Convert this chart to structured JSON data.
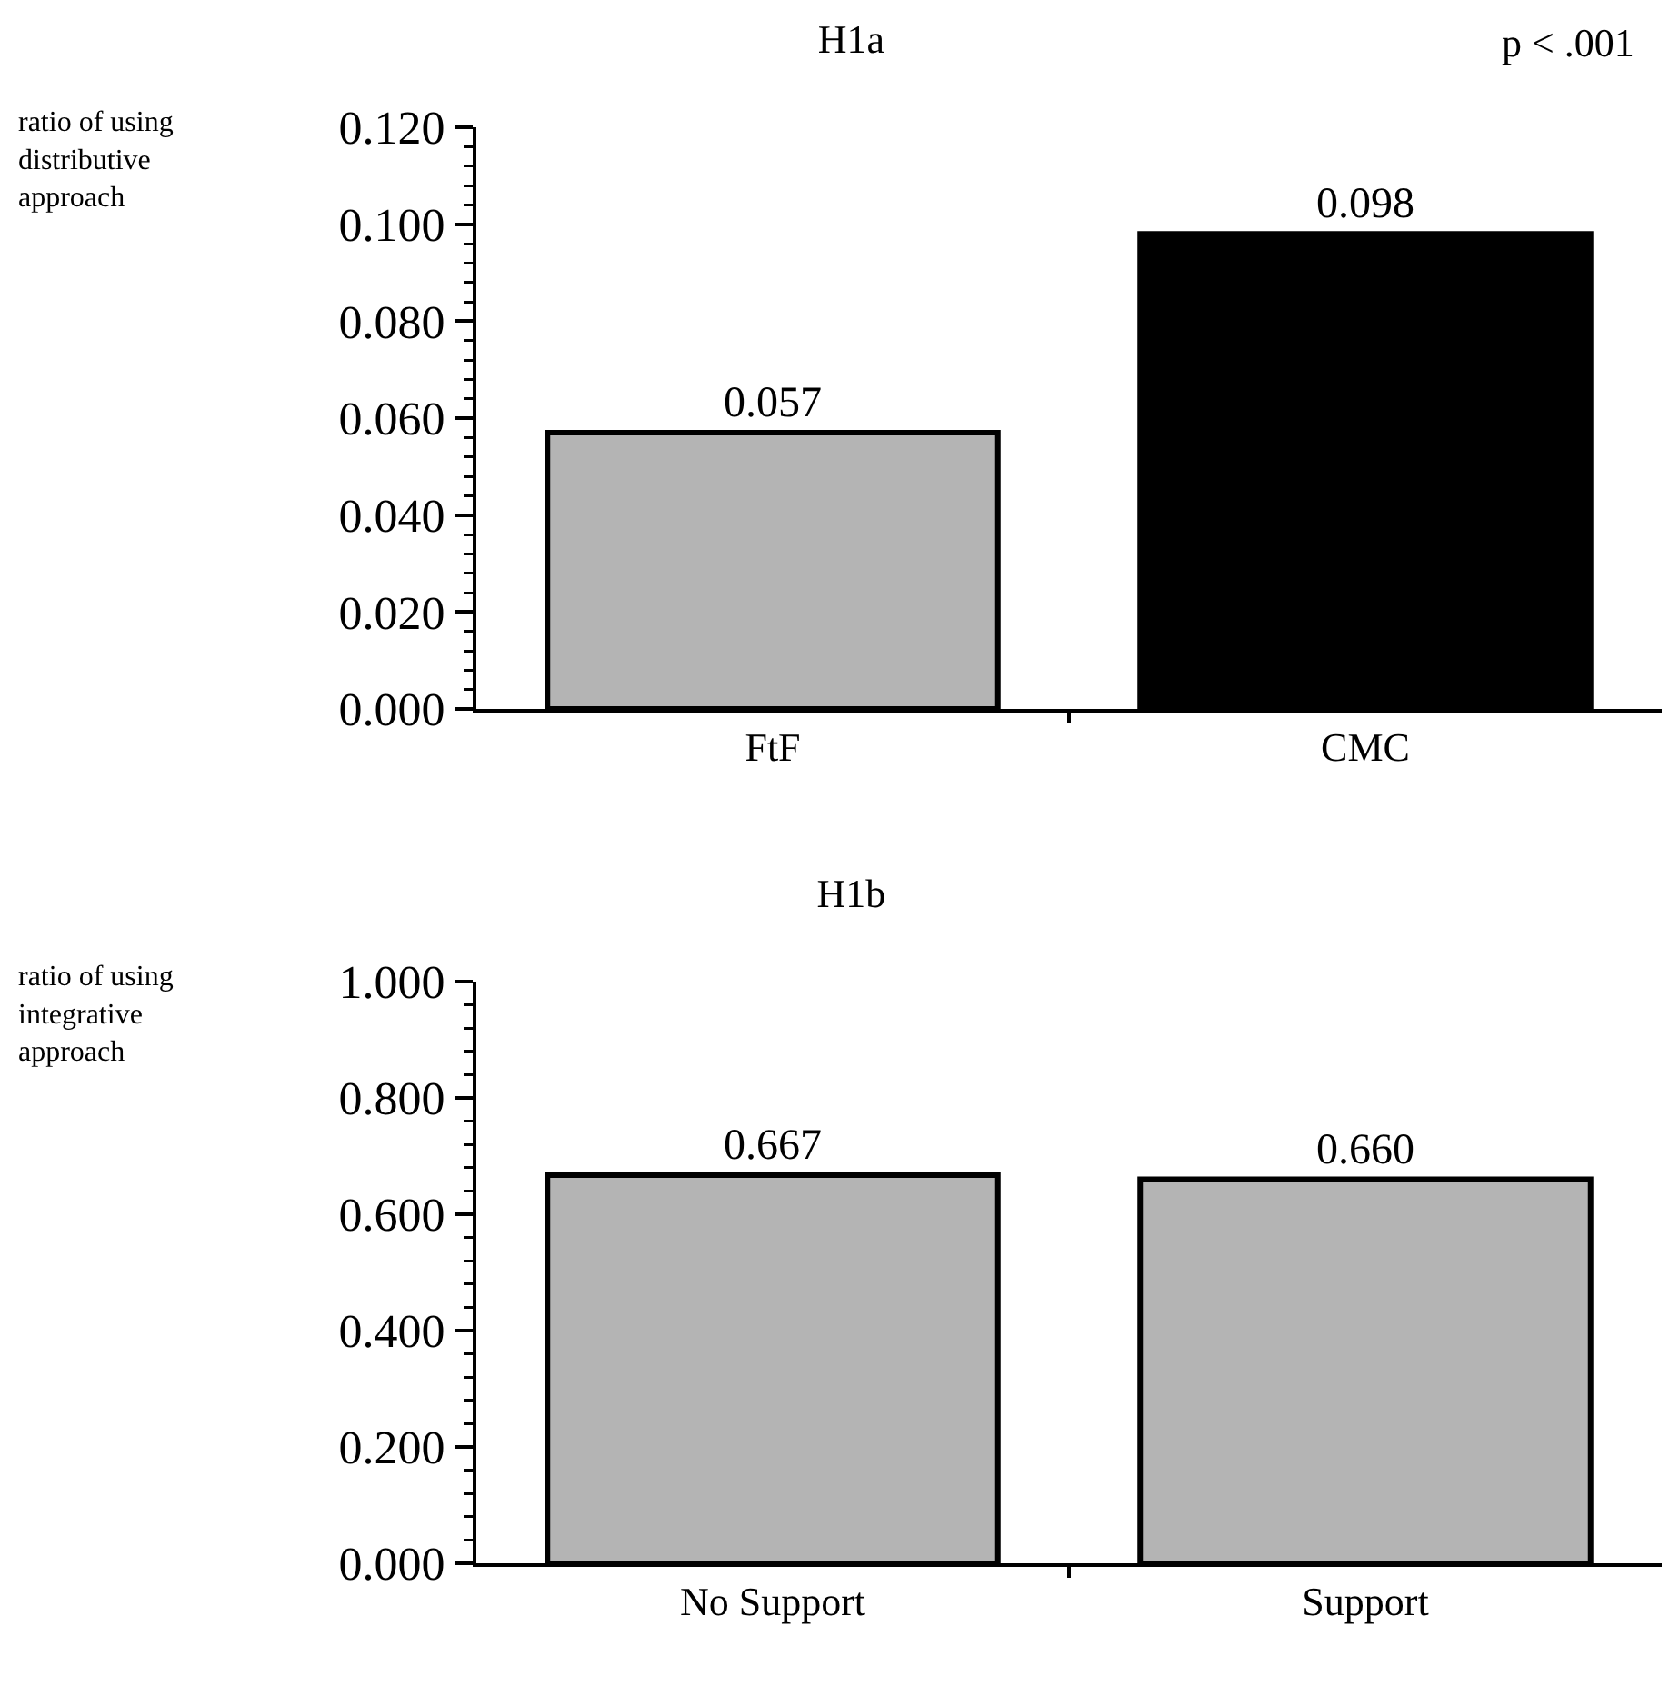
{
  "chart_data": [
    {
      "type": "bar",
      "title": "H1a",
      "ylabel": "ratio of using distributive approach",
      "categories": [
        "FtF",
        "CMC"
      ],
      "series": [
        {
          "colors": [
            "#b4b4b4",
            "#000000"
          ],
          "values": [
            0.057,
            0.098
          ],
          "value_labels": [
            "0.057",
            "0.098"
          ]
        }
      ],
      "ylim": [
        0,
        0.12
      ],
      "yticks": [
        {
          "value": 0,
          "label": "0.000"
        },
        {
          "value": 0.02,
          "label": "0.020"
        },
        {
          "value": 0.04,
          "label": "0.040"
        },
        {
          "value": 0.06,
          "label": "0.060"
        },
        {
          "value": 0.08,
          "label": "0.080"
        },
        {
          "value": 0.1,
          "label": "0.100"
        },
        {
          "value": 0.12,
          "label": "0.120"
        }
      ],
      "annotations": [
        "p < .001"
      ],
      "grid": false
    },
    {
      "type": "bar",
      "title": "H1b",
      "ylabel": "ratio of using integrative approach",
      "categories": [
        "No Support",
        "Support"
      ],
      "series": [
        {
          "color": "#b4b4b4",
          "values": [
            0.667,
            0.66
          ],
          "value_labels": [
            "0.667",
            "0.660"
          ]
        }
      ],
      "ylim": [
        0,
        1
      ],
      "yticks": [
        {
          "value": 0,
          "label": "0.000"
        },
        {
          "value": 0.2,
          "label": "0.200"
        },
        {
          "value": 0.4,
          "label": "0.400"
        },
        {
          "value": 0.6,
          "label": "0.600"
        },
        {
          "value": 0.8,
          "label": "0.800"
        },
        {
          "value": 1,
          "label": "1.000"
        }
      ],
      "grid": false
    }
  ]
}
